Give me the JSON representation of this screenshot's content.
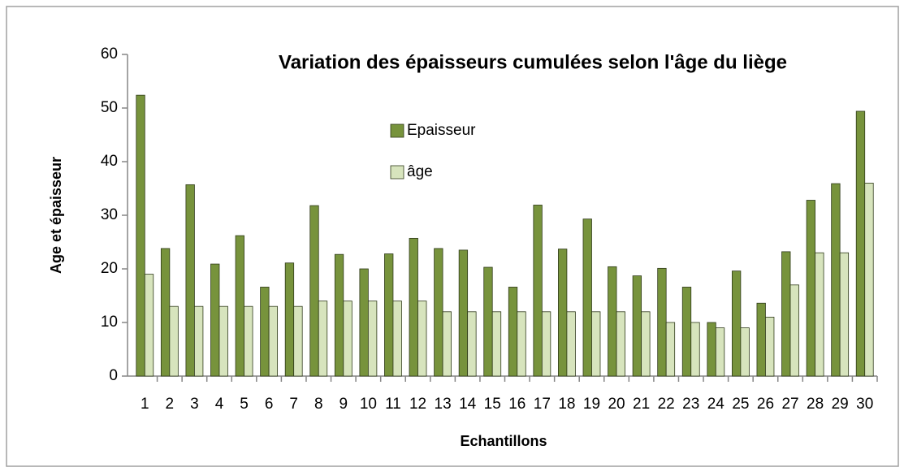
{
  "chart_data": {
    "type": "bar",
    "title": "Variation des épaisseurs cumulées selon l'âge du liège",
    "x_label": "Echantillons",
    "y_label": "Age et épaisseur",
    "categories": [
      "1",
      "2",
      "3",
      "4",
      "5",
      "6",
      "7",
      "8",
      "9",
      "10",
      "11",
      "12",
      "13",
      "14",
      "15",
      "16",
      "17",
      "18",
      "19",
      "20",
      "21",
      "22",
      "23",
      "24",
      "25",
      "26",
      "27",
      "28",
      "29",
      "30"
    ],
    "series": [
      {
        "name": "Epaisseur",
        "color": "#77933c",
        "values": [
          52.4,
          23.8,
          35.7,
          20.9,
          26.2,
          16.6,
          21.1,
          31.8,
          22.7,
          20.0,
          22.8,
          25.7,
          23.8,
          23.5,
          20.3,
          16.6,
          31.9,
          23.7,
          29.3,
          20.4,
          18.7,
          20.1,
          16.6,
          10.0,
          19.6,
          13.6,
          23.2,
          32.8,
          35.9,
          49.4
        ]
      },
      {
        "name": "âge",
        "color": "#d7e4bd",
        "values": [
          19,
          13,
          13,
          13,
          13,
          13,
          13,
          14,
          14,
          14,
          14,
          14,
          12,
          12,
          12,
          12,
          12,
          12,
          12,
          12,
          12,
          10,
          10,
          9,
          9,
          11,
          17,
          23,
          23,
          36
        ]
      }
    ],
    "ylim": [
      0,
      60
    ],
    "yticks": [
      0,
      10,
      20,
      30,
      40,
      50,
      60
    ],
    "grid": false
  }
}
